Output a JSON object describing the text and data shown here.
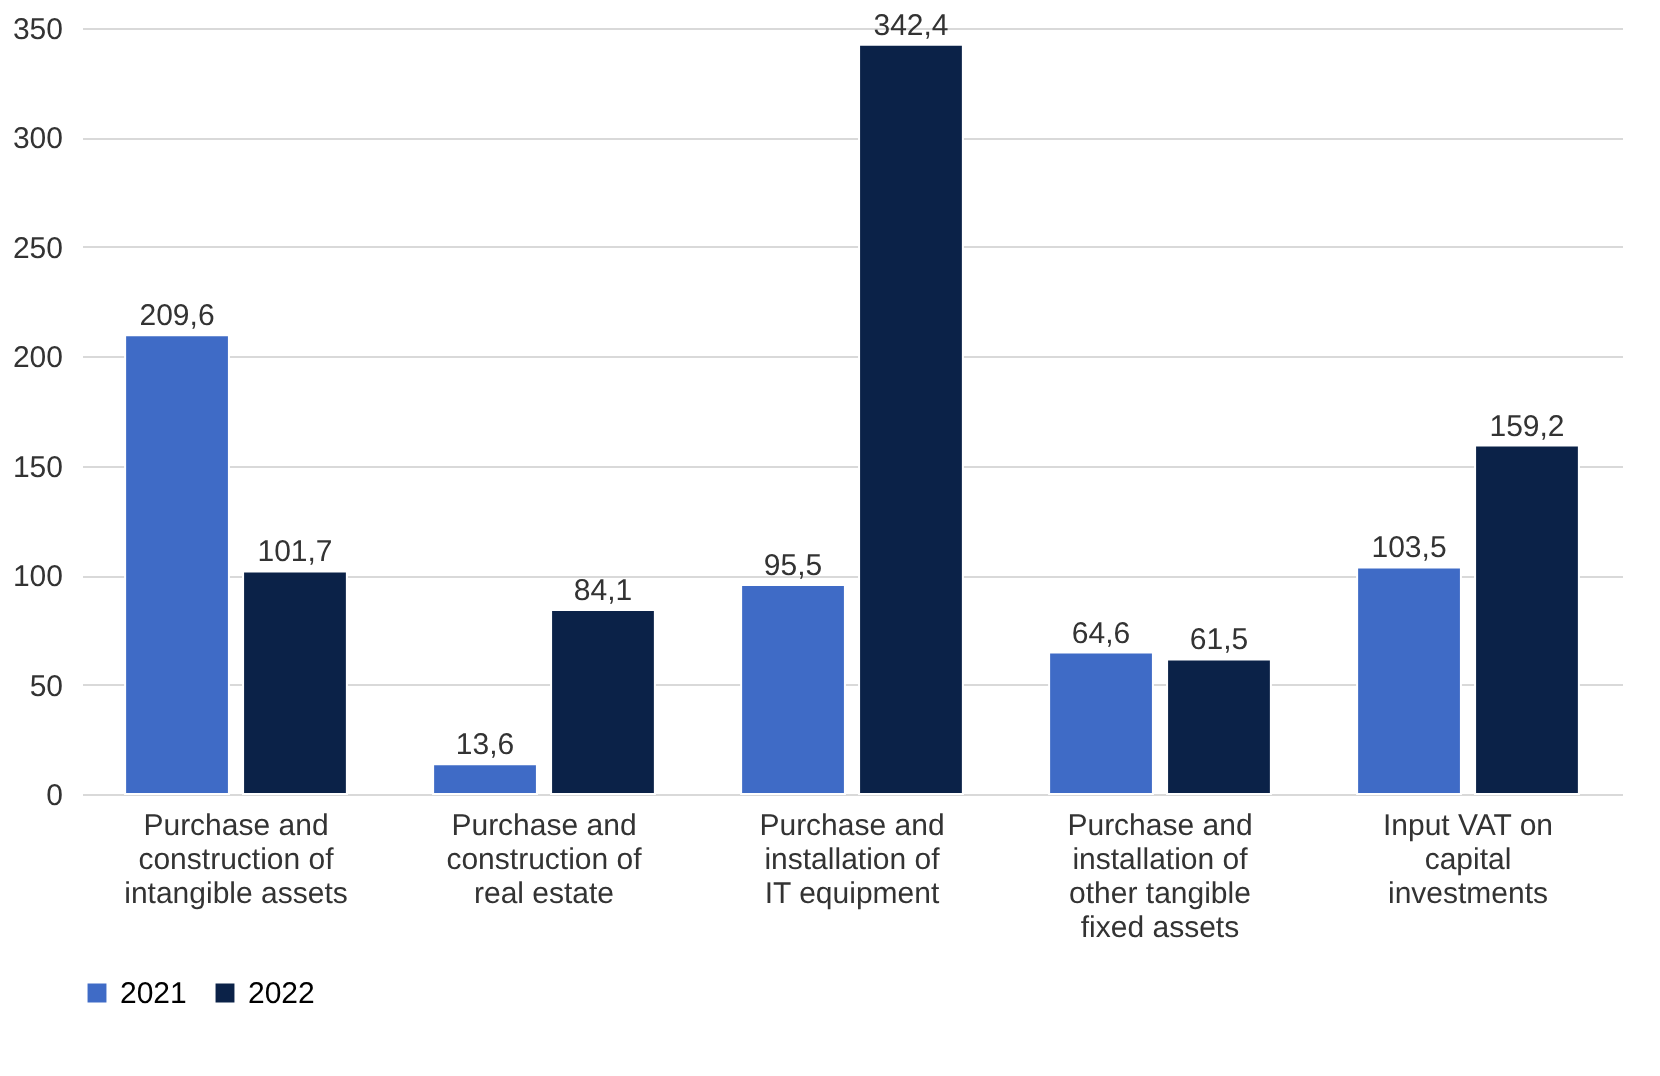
{
  "chart_data": {
    "type": "bar",
    "categories": [
      "Purchase and construction of intangible assets",
      "Purchase and construction of real estate",
      "Purchase and installation of IT equipment",
      "Purchase and installation of other tangible fixed assets",
      "Input VAT on capital investments"
    ],
    "series": [
      {
        "name": "2021",
        "color": "#3f6bc6",
        "values": [
          209.6,
          13.6,
          95.5,
          64.6,
          103.5
        ],
        "value_labels": [
          "209,6",
          "13,6",
          "95,5",
          "64,6",
          "103,5"
        ]
      },
      {
        "name": "2022",
        "color": "#0b2248",
        "values": [
          101.7,
          84.1,
          342.4,
          61.5,
          159.2
        ],
        "value_labels": [
          "101,7",
          "84,1",
          "342,4",
          "61,5",
          "159,2"
        ]
      }
    ],
    "ylim": [
      0,
      350
    ],
    "yticks": [
      0,
      50,
      100,
      150,
      200,
      250,
      300,
      350
    ],
    "grid": "y",
    "legend": "bottom"
  }
}
